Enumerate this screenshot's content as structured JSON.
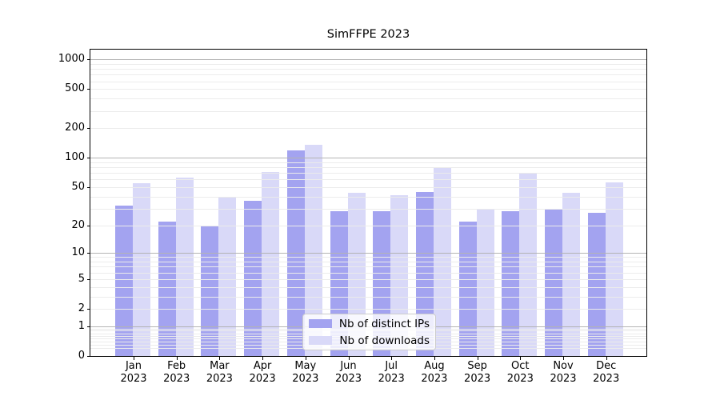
{
  "figure": {
    "title": "SimFFPE 2023"
  },
  "chart_data": {
    "type": "bar",
    "title": "SimFFPE 2023",
    "categories": [
      "Jan 2023",
      "Feb 2023",
      "Mar 2023",
      "Apr 2023",
      "May 2023",
      "Jun 2023",
      "Jul 2023",
      "Aug 2023",
      "Sep 2023",
      "Oct 2023",
      "Nov 2023",
      "Dec 2023"
    ],
    "x_axis": {
      "months": [
        "Jan",
        "Feb",
        "Mar",
        "Apr",
        "May",
        "Jun",
        "Jul",
        "Aug",
        "Sep",
        "Oct",
        "Nov",
        "Dec"
      ],
      "year": "2023"
    },
    "series": [
      {
        "name": "Nb of distinct IPs",
        "color": "#a3a3f0",
        "values": [
          32,
          22,
          20,
          36,
          120,
          28,
          28,
          45,
          22,
          28,
          30,
          27
        ]
      },
      {
        "name": "Nb of downloads",
        "color": "#d9d9f8",
        "values": [
          55,
          63,
          39,
          72,
          137,
          44,
          41,
          79,
          30,
          71,
          44,
          56
        ]
      }
    ],
    "y_axis": {
      "scale": "log1p",
      "tick_labels": [
        "0",
        "1",
        "2",
        "5",
        "10",
        "20",
        "50",
        "100",
        "200",
        "500",
        "1000"
      ],
      "ticks": [
        0,
        1,
        2,
        5,
        10,
        20,
        50,
        100,
        200,
        500,
        1000
      ],
      "ylim": [
        0,
        1258
      ],
      "grid": true
    },
    "legend": {
      "position": "lower-center",
      "entries": [
        "Nb of distinct IPs",
        "Nb of downloads"
      ]
    }
  },
  "colors": {
    "bar_distinct_ips": "#a3a3f0",
    "bar_downloads": "#d9d9f8",
    "grid_major": "#b3b3b3",
    "grid_minor": "#ebebeb",
    "spine": "#000000",
    "background": "#ffffff",
    "legend_border": "#cccccc"
  }
}
